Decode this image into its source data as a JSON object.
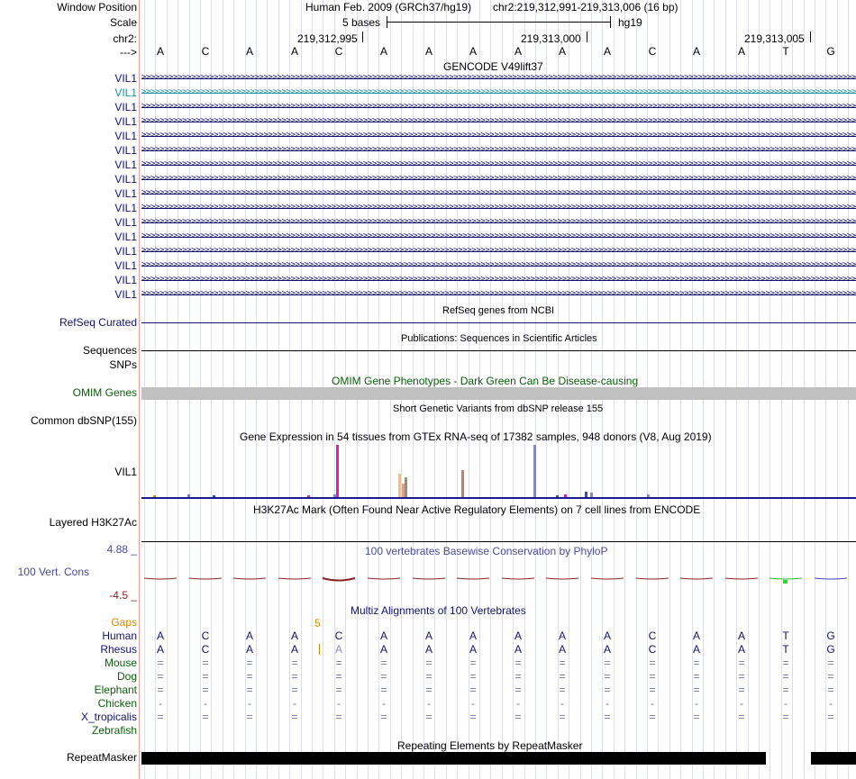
{
  "labels": {
    "window_position": "Window Position",
    "scale": "Scale",
    "chr": "chr2:",
    "strand": "--->",
    "refseq": "RefSeq Curated",
    "sequences": "Sequences",
    "snps": "SNPs",
    "omim": "OMIM Genes",
    "common_dbsnp": "Common dbSNP(155)",
    "gtex_gene": "VIL1",
    "layered": "Layered H3K27Ac",
    "phylop_max": "4.88 _",
    "phylop": "100 Vert. Cons",
    "phylop_min": "-4.5 _",
    "gaps": "Gaps",
    "species": [
      "Human",
      "Rhesus",
      "Mouse",
      "Dog",
      "Elephant",
      "Chicken",
      "X_tropicalis",
      "Zebrafish"
    ],
    "repeatmasker": "RepeatMasker"
  },
  "header": {
    "assembly": "Human Feb. 2009 (GRCh37/hg19)",
    "region": "chr2:219,312,991-219,313,006 (16 bp)",
    "scale_text": "5 bases",
    "scale_db": "hg19",
    "coord1": "219,312,995",
    "coord2": "219,313,000",
    "coord3": "219,313,005"
  },
  "sequence": [
    "A",
    "C",
    "A",
    "A",
    "C",
    "A",
    "A",
    "A",
    "A",
    "A",
    "A",
    "C",
    "A",
    "A",
    "T",
    "G"
  ],
  "rhesus": [
    "A",
    "C",
    "A",
    "A",
    "A",
    "A",
    "A",
    "A",
    "A",
    "A",
    "A",
    "C",
    "A",
    "A",
    "T",
    "G"
  ],
  "gap_count": "5",
  "gencode": {
    "title": "GENCODE V49lift37",
    "genes": [
      "VIL1",
      "VIL1",
      "VIL1",
      "VIL1",
      "VIL1",
      "VIL1",
      "VIL1",
      "VIL1",
      "VIL1",
      "VIL1",
      "VIL1",
      "VIL1",
      "VIL1",
      "VIL1",
      "VIL1",
      "VIL1"
    ]
  },
  "titles": {
    "refseq": "RefSeq genes from NCBI",
    "publications": "Publications: Sequences in Scientific Articles",
    "omim": "OMIM Gene Phenotypes - Dark Green Can Be Disease-causing",
    "dbsnp": "Short Genetic Variants from dbSNP release 155",
    "gtex": "Gene Expression in 54 tissues from GTEx RNA-seq of 17382 samples, 948 donors (V8, Aug 2019)",
    "h3k27ac": "H3K27Ac Mark (Often Found Near Active Regulatory Elements) on 7 cell lines from ENCODE",
    "phylop": "100 vertebrates Basewise Conservation by PhyloP",
    "multiz": "Multiz Alignments of 100 Vertebrates",
    "repeatmasker": "Repeating Elements by RepeatMasker"
  },
  "conservation_symbols": {
    "Mouse": "=",
    "Dog": "=",
    "Elephant": "=",
    "Chicken": "-",
    "X_tropicalis": "="
  },
  "colors": {
    "navy": "#12126e",
    "green": "#0b5e0b",
    "orange": "#d48a00",
    "phylop_blue": "#4a4a9e",
    "phylop_red": "#8a2020",
    "selected_gene": "#1a90a0"
  },
  "gtex_values": [
    0,
    0,
    0,
    0,
    2,
    0,
    0,
    0,
    0,
    0,
    0,
    0,
    0,
    0,
    0,
    0,
    5,
    0,
    0,
    0,
    0,
    0,
    0,
    0,
    0,
    3,
    0,
    0,
    0,
    0,
    0,
    0,
    0,
    0,
    0,
    0,
    0,
    0,
    0,
    0,
    0,
    0,
    0,
    0,
    0,
    0,
    0,
    0,
    0,
    0,
    0,
    0,
    0,
    0,
    0,
    0,
    0,
    0,
    2,
    0,
    0,
    0,
    0,
    0,
    0,
    0,
    0,
    5,
    100,
    0,
    0,
    0,
    0,
    0,
    0,
    0,
    0,
    0,
    0,
    0,
    0,
    0,
    0,
    0,
    0,
    0,
    0,
    0,
    0,
    0,
    45,
    25,
    38,
    0,
    0,
    0,
    0,
    0,
    0,
    0,
    0,
    0,
    0,
    0,
    0,
    0,
    0,
    0,
    0,
    0,
    0,
    0,
    52,
    0,
    0,
    0,
    0,
    0,
    0,
    0,
    0,
    0,
    0,
    0,
    0,
    0,
    0,
    0,
    0,
    0,
    0,
    0,
    0,
    0,
    0,
    0,
    0,
    100,
    0,
    0,
    0,
    0,
    0,
    0,
    0,
    3,
    0,
    0,
    6,
    0,
    0,
    0,
    0,
    0,
    0,
    10,
    0,
    8,
    0,
    0,
    0,
    0,
    0,
    0,
    0,
    0,
    0,
    0,
    0,
    0,
    0,
    0,
    0,
    0,
    0,
    0,
    0,
    5,
    0,
    0,
    0,
    0,
    0,
    0,
    0,
    0,
    0,
    0,
    0,
    0,
    0,
    0,
    0,
    0,
    0,
    0,
    0,
    0,
    0,
    0,
    0,
    0,
    0,
    0,
    0,
    0,
    0,
    0,
    0,
    0,
    0,
    0,
    0,
    0,
    0,
    0,
    0,
    0,
    0,
    0,
    0,
    0,
    0,
    0,
    0,
    0,
    0,
    0,
    0,
    0,
    0,
    0,
    0,
    0,
    0,
    0,
    0,
    0,
    0,
    0,
    0,
    0,
    0,
    0,
    0,
    0,
    0,
    0,
    0,
    0
  ]
}
